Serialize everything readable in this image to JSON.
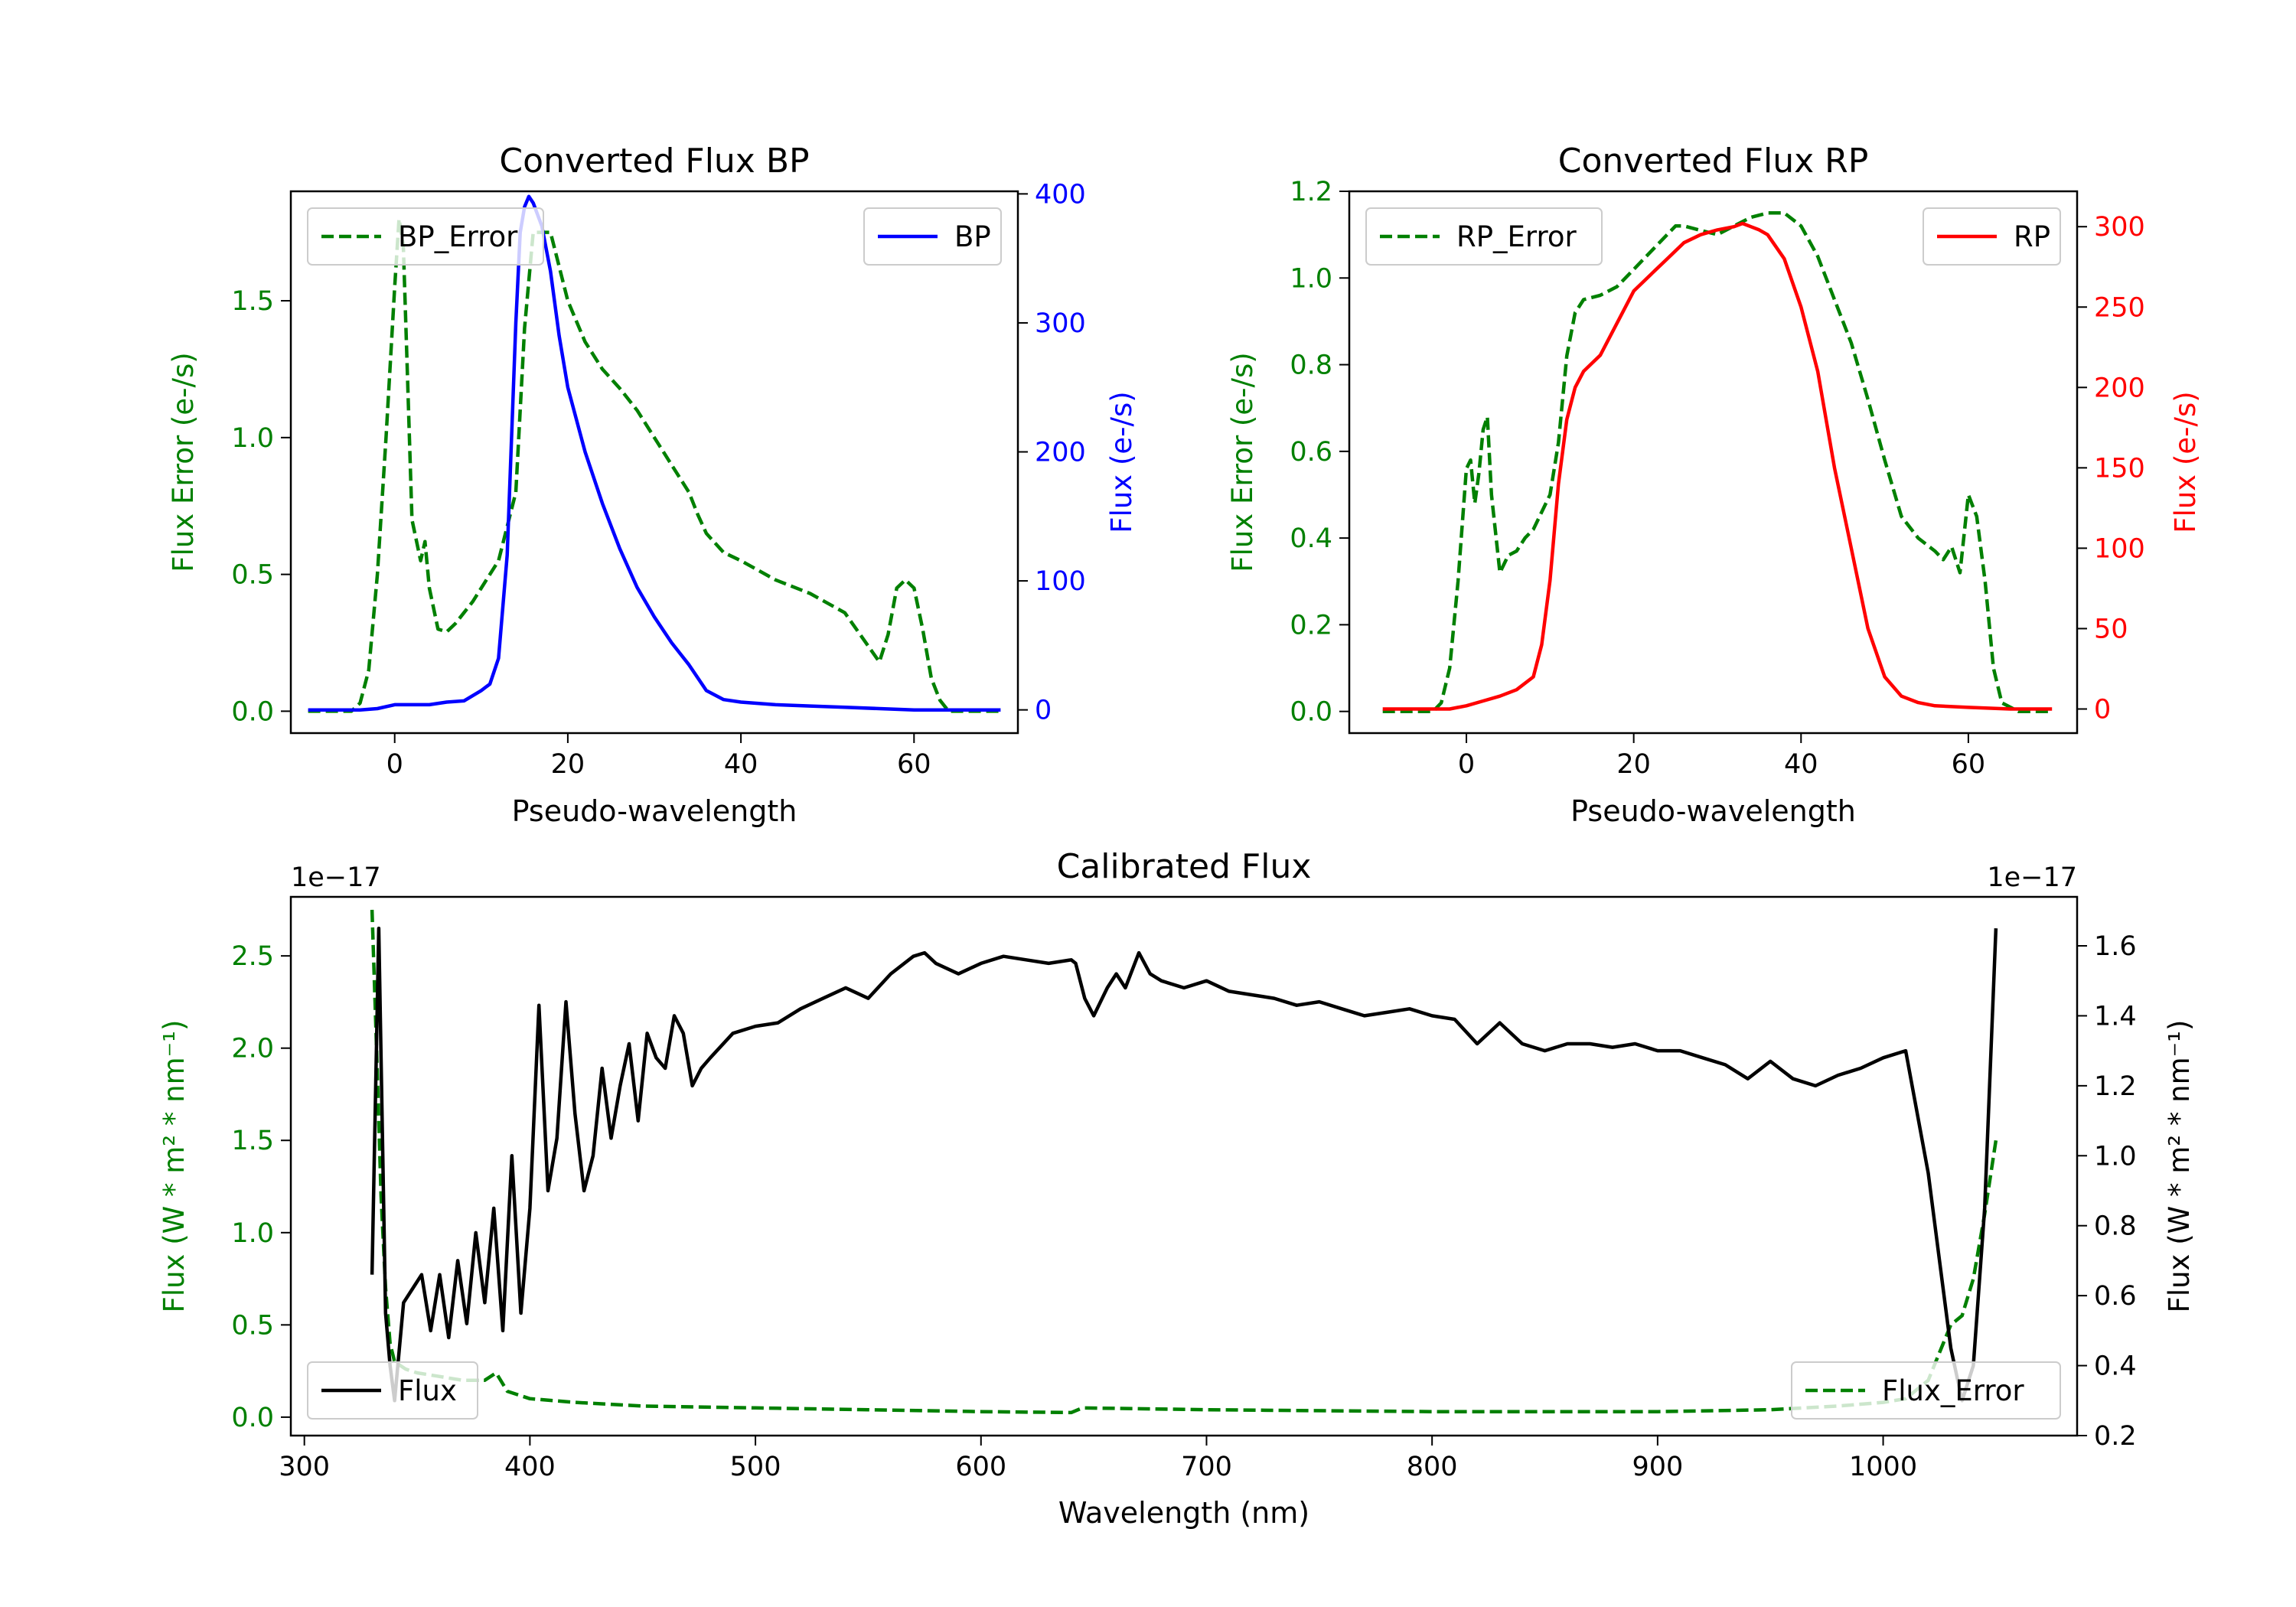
{
  "chart_data": [
    {
      "type": "line",
      "id": "bp",
      "title": "Converted Flux BP",
      "xlabel": "Pseudo-wavelength",
      "ylabel_left": "Flux Error (e-/s)",
      "ylabel_right": "Flux (e-/s)",
      "xlim": [
        -12,
        72
      ],
      "ylim_left": [
        -0.08,
        1.9
      ],
      "ylim_right": [
        -18,
        402
      ],
      "x_ticks": [
        0,
        20,
        40,
        60
      ],
      "y_ticks_left": [
        0.0,
        0.5,
        1.0,
        1.5
      ],
      "y_ticks_right": [
        0,
        100,
        200,
        300,
        400
      ],
      "left_axis_color": "#008000",
      "right_axis_color": "#0000ff",
      "legend_left": {
        "label": "BP_Error",
        "position": "upper left"
      },
      "legend_right": {
        "label": "BP",
        "position": "upper right"
      },
      "series": [
        {
          "name": "BP_Error",
          "axis": "left",
          "color": "#008000",
          "style": "dashed",
          "x": [
            -10,
            -5,
            -4,
            -3,
            -2,
            -1,
            0,
            0.5,
            1,
            1.5,
            2,
            3,
            3.5,
            4,
            5,
            6,
            7,
            8,
            9,
            10,
            12,
            14,
            15,
            16,
            18,
            20,
            22,
            24,
            26,
            28,
            30,
            32,
            34,
            35,
            36,
            38,
            40,
            44,
            48,
            52,
            54,
            56,
            57,
            58,
            59,
            60,
            61,
            62,
            63,
            64,
            66,
            70
          ],
          "y": [
            0,
            0,
            0.03,
            0.15,
            0.5,
            1.0,
            1.55,
            1.8,
            1.7,
            1.2,
            0.7,
            0.55,
            0.62,
            0.45,
            0.3,
            0.29,
            0.32,
            0.36,
            0.4,
            0.45,
            0.55,
            0.8,
            1.4,
            1.75,
            1.75,
            1.5,
            1.35,
            1.25,
            1.18,
            1.1,
            1.0,
            0.9,
            0.8,
            0.72,
            0.65,
            0.58,
            0.55,
            0.48,
            0.43,
            0.36,
            0.27,
            0.18,
            0.28,
            0.45,
            0.48,
            0.45,
            0.3,
            0.12,
            0.04,
            0.0,
            0,
            0
          ]
        },
        {
          "name": "BP",
          "axis": "right",
          "color": "#0000ff",
          "style": "solid",
          "x": [
            -10,
            -4,
            -2,
            0,
            2,
            4,
            6,
            8,
            10,
            11,
            12,
            13,
            14,
            14.5,
            15,
            15.5,
            16,
            17,
            18,
            19,
            20,
            22,
            24,
            26,
            28,
            30,
            32,
            34,
            36,
            38,
            40,
            44,
            48,
            52,
            56,
            60,
            64,
            70
          ],
          "y": [
            0,
            0,
            1,
            4,
            4,
            4,
            6,
            7,
            15,
            20,
            40,
            120,
            300,
            370,
            390,
            398,
            393,
            375,
            340,
            290,
            250,
            200,
            160,
            125,
            95,
            72,
            52,
            35,
            15,
            8,
            6,
            4,
            3,
            2,
            1,
            0,
            0,
            0
          ]
        }
      ]
    },
    {
      "type": "line",
      "id": "rp",
      "title": "Converted Flux RP",
      "xlabel": "Pseudo-wavelength",
      "ylabel_left": "Flux Error (e-/s)",
      "ylabel_right": "Flux (e-/s)",
      "xlim": [
        -14,
        73
      ],
      "ylim_left": [
        -0.05,
        1.2
      ],
      "ylim_right": [
        -15,
        322
      ],
      "x_ticks": [
        0,
        20,
        40,
        60
      ],
      "y_ticks_left": [
        0.0,
        0.2,
        0.4,
        0.6,
        0.8,
        1.0,
        1.2
      ],
      "y_ticks_right": [
        0,
        50,
        100,
        150,
        200,
        250,
        300
      ],
      "left_axis_color": "#008000",
      "right_axis_color": "#ff0000",
      "legend_left": {
        "label": "RP_Error",
        "position": "upper left"
      },
      "legend_right": {
        "label": "RP",
        "position": "upper right"
      },
      "series": [
        {
          "name": "RP_Error",
          "axis": "left",
          "color": "#008000",
          "style": "dashed",
          "x": [
            -10,
            -4,
            -3,
            -2,
            -1,
            0,
            0.5,
            1,
            1.5,
            2,
            2.5,
            3,
            4,
            5,
            6,
            7,
            8,
            10,
            11,
            12,
            13,
            14,
            16,
            18,
            20,
            22,
            24,
            25,
            26,
            28,
            30,
            32,
            34,
            36,
            38,
            40,
            42,
            44,
            46,
            48,
            50,
            52,
            54,
            56,
            57,
            58,
            59,
            60,
            61,
            62,
            63,
            64,
            66,
            70
          ],
          "y": [
            0,
            0,
            0.02,
            0.1,
            0.3,
            0.56,
            0.58,
            0.48,
            0.55,
            0.65,
            0.68,
            0.5,
            0.32,
            0.36,
            0.37,
            0.4,
            0.42,
            0.5,
            0.62,
            0.82,
            0.92,
            0.95,
            0.96,
            0.98,
            1.02,
            1.06,
            1.1,
            1.12,
            1.12,
            1.11,
            1.1,
            1.12,
            1.14,
            1.15,
            1.15,
            1.12,
            1.05,
            0.95,
            0.85,
            0.72,
            0.58,
            0.45,
            0.4,
            0.37,
            0.35,
            0.38,
            0.32,
            0.5,
            0.45,
            0.3,
            0.1,
            0.02,
            0,
            0
          ]
        },
        {
          "name": "RP",
          "axis": "right",
          "color": "#ff0000",
          "style": "solid",
          "x": [
            -10,
            -2,
            0,
            2,
            4,
            6,
            8,
            9,
            10,
            11,
            12,
            13,
            14,
            15,
            16,
            18,
            20,
            22,
            24,
            26,
            28,
            30,
            32,
            33,
            34,
            35,
            36,
            38,
            40,
            42,
            44,
            46,
            48,
            50,
            52,
            54,
            56,
            60,
            65,
            70
          ],
          "y": [
            0,
            0,
            2,
            5,
            8,
            12,
            20,
            40,
            80,
            140,
            180,
            200,
            210,
            215,
            220,
            240,
            260,
            270,
            280,
            290,
            295,
            298,
            300,
            302,
            300,
            298,
            295,
            280,
            250,
            210,
            150,
            100,
            50,
            20,
            8,
            4,
            2,
            1,
            0,
            0
          ]
        }
      ]
    },
    {
      "type": "line",
      "id": "calibrated",
      "title": "Calibrated Flux",
      "xlabel": "Wavelength (nm)",
      "ylabel_left": "Flux (W * m$^2$ * nm$^{-1}$)",
      "ylabel_right": "Flux (W * m$^2$ * nm$^{-1}$)",
      "ylabel_left_display": "Flux (W * m² * nm⁻¹)",
      "ylabel_right_display": "Flux (W * m² * nm⁻¹)",
      "offset_left": "1e−17",
      "offset_right": "1e−17",
      "xlim": [
        294,
        1086
      ],
      "ylim_left": [
        -0.1,
        2.82
      ],
      "ylim_right": [
        0.2,
        1.74
      ],
      "x_ticks": [
        300,
        400,
        500,
        600,
        700,
        800,
        900,
        1000
      ],
      "y_ticks_left": [
        0.0,
        0.5,
        1.0,
        1.5,
        2.0,
        2.5
      ],
      "y_ticks_right": [
        0.2,
        0.4,
        0.6,
        0.8,
        1.0,
        1.2,
        1.4,
        1.6
      ],
      "left_axis_color": "#008000",
      "right_axis_color": "#000000",
      "legend_left": {
        "label": "Flux",
        "position": "lower left"
      },
      "legend_right": {
        "label": "Flux_Error",
        "position": "lower right"
      },
      "series": [
        {
          "name": "Flux",
          "axis": "right",
          "color": "#000000",
          "style": "solid",
          "x": [
            330,
            333,
            336,
            338,
            340,
            344,
            348,
            352,
            356,
            360,
            364,
            368,
            372,
            376,
            380,
            384,
            388,
            392,
            396,
            400,
            404,
            408,
            412,
            416,
            420,
            424,
            428,
            432,
            436,
            440,
            444,
            448,
            452,
            456,
            460,
            464,
            468,
            472,
            476,
            480,
            490,
            500,
            510,
            520,
            530,
            540,
            550,
            560,
            570,
            575,
            580,
            590,
            600,
            610,
            620,
            630,
            640,
            642,
            646,
            650,
            656,
            660,
            664,
            670,
            675,
            680,
            690,
            700,
            710,
            720,
            730,
            740,
            750,
            760,
            770,
            780,
            790,
            800,
            810,
            820,
            830,
            840,
            850,
            860,
            870,
            880,
            890,
            900,
            910,
            920,
            930,
            940,
            950,
            960,
            970,
            980,
            990,
            1000,
            1010,
            1020,
            1025,
            1030,
            1035,
            1040,
            1045,
            1050
          ],
          "y": [
            0.66,
            1.65,
            0.55,
            0.4,
            0.3,
            0.58,
            0.62,
            0.66,
            0.5,
            0.66,
            0.48,
            0.7,
            0.52,
            0.78,
            0.58,
            0.85,
            0.5,
            1.0,
            0.55,
            0.85,
            1.43,
            0.9,
            1.05,
            1.44,
            1.12,
            0.9,
            1.0,
            1.25,
            1.05,
            1.2,
            1.32,
            1.1,
            1.35,
            1.28,
            1.25,
            1.4,
            1.35,
            1.2,
            1.25,
            1.28,
            1.35,
            1.37,
            1.38,
            1.42,
            1.45,
            1.48,
            1.45,
            1.52,
            1.57,
            1.58,
            1.55,
            1.52,
            1.55,
            1.57,
            1.56,
            1.55,
            1.56,
            1.55,
            1.45,
            1.4,
            1.48,
            1.52,
            1.48,
            1.58,
            1.52,
            1.5,
            1.48,
            1.5,
            1.47,
            1.46,
            1.45,
            1.43,
            1.44,
            1.42,
            1.4,
            1.41,
            1.42,
            1.4,
            1.39,
            1.32,
            1.38,
            1.32,
            1.3,
            1.32,
            1.32,
            1.31,
            1.32,
            1.3,
            1.3,
            1.28,
            1.26,
            1.22,
            1.27,
            1.22,
            1.2,
            1.23,
            1.25,
            1.28,
            1.3,
            0.95,
            0.7,
            0.45,
            0.3,
            0.4,
            0.85,
            1.65
          ]
        },
        {
          "name": "Flux_Error",
          "axis": "left",
          "color": "#008000",
          "style": "dashed",
          "x": [
            330,
            332,
            334,
            336,
            338,
            340,
            345,
            350,
            360,
            370,
            380,
            385,
            390,
            400,
            420,
            450,
            500,
            550,
            600,
            640,
            645,
            700,
            800,
            900,
            950,
            980,
            1000,
            1010,
            1015,
            1020,
            1025,
            1030,
            1035,
            1040,
            1045,
            1050
          ],
          "y": [
            2.75,
            2.0,
            1.2,
            0.7,
            0.4,
            0.3,
            0.26,
            0.24,
            0.22,
            0.2,
            0.2,
            0.24,
            0.14,
            0.1,
            0.08,
            0.06,
            0.05,
            0.04,
            0.03,
            0.025,
            0.05,
            0.04,
            0.03,
            0.03,
            0.04,
            0.06,
            0.08,
            0.1,
            0.15,
            0.2,
            0.35,
            0.5,
            0.55,
            0.75,
            1.1,
            1.5
          ]
        }
      ]
    }
  ]
}
